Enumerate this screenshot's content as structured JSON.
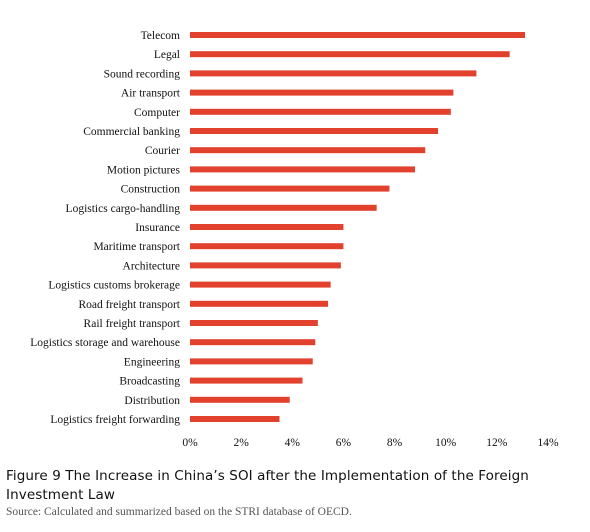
{
  "chart_data": {
    "type": "bar",
    "orientation": "horizontal",
    "categories": [
      "Telecom",
      "Legal",
      "Sound recording",
      "Air transport",
      "Computer",
      "Commercial banking",
      "Courier",
      "Motion pictures",
      "Construction",
      "Logistics cargo-handling",
      "Insurance",
      "Maritime transport",
      "Architecture",
      "Logistics customs brokerage",
      "Road freight transport",
      "Rail freight transport",
      "Logistics storage and warehouse",
      "Engineering",
      "Broadcasting",
      "Distribution",
      "Logistics freight forwarding"
    ],
    "values": [
      0.131,
      0.125,
      0.112,
      0.103,
      0.102,
      0.097,
      0.092,
      0.088,
      0.078,
      0.073,
      0.06,
      0.06,
      0.059,
      0.055,
      0.054,
      0.05,
      0.049,
      0.048,
      0.044,
      0.039,
      0.035
    ],
    "xlim": [
      0,
      0.14
    ],
    "xticks": [
      "0%",
      "2%",
      "4%",
      "6%",
      "8%",
      "10%",
      "12%",
      "14%"
    ],
    "bar_color": "#e2412e",
    "grid": false,
    "legend": "none"
  },
  "caption": {
    "figure_title": "Figure 9 The Increase in China’s SOI after the Implementation of the Foreign Investment Law",
    "source": "Source: Calculated and summarized based on the STRI database of OECD."
  }
}
